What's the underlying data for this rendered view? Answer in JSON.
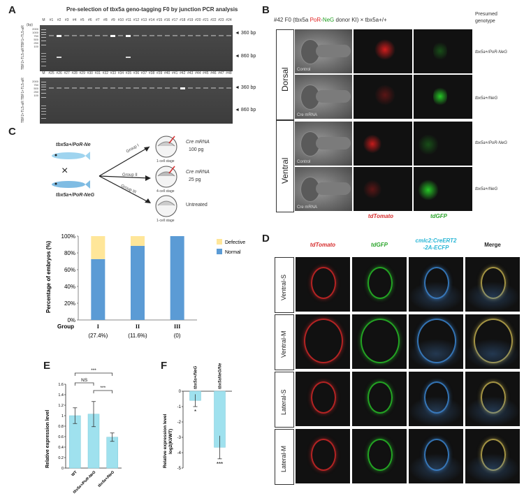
{
  "panel_labels": {
    "a": "A",
    "b": "B",
    "c": "C",
    "d": "D",
    "e": "E",
    "f": "F"
  },
  "panel_a": {
    "title": "Pre-selection of tbx5a geno-tagging F0 by junction PCR analysis",
    "row1_lanes": [
      "M",
      "#1",
      "#2",
      "#3",
      "#4",
      "#5",
      "#6",
      "#7",
      "#8",
      "#9",
      "#10",
      "#11",
      "#12",
      "#13",
      "#14",
      "#15",
      "#16",
      "#17",
      "#18",
      "#19",
      "#20",
      "#21",
      "#22",
      "#23",
      "#24"
    ],
    "row2_lanes": [
      "M",
      "#25",
      "#26",
      "#27",
      "#28",
      "#29",
      "#30",
      "#31",
      "#32",
      "#33",
      "#34",
      "#35",
      "#36",
      "#37",
      "#38",
      "#39",
      "#40",
      "#41",
      "#42",
      "#43",
      "#44",
      "#45",
      "#46",
      "#47",
      "#48"
    ],
    "bp_unit": "(bp)",
    "ladder_marks_top": [
      "2000",
      "1000",
      "750",
      "500",
      "250",
      "100"
    ],
    "ladder_marks_bottom": [
      "2000",
      "750",
      "500",
      "250",
      "100"
    ],
    "band_360": "360 bp",
    "band_860": "860 bp",
    "side_label_1": "TBF1+TL5-aR",
    "side_label_2": "TBF2+TL5-aR"
  },
  "panel_b": {
    "title_prefix": "#42 F0 (tbx5a ",
    "title_por": "PoR",
    "title_dash": "-",
    "title_neg": "NeG",
    "title_suffix": " donor KI) × tbx5a+/+",
    "presumed": "Presumed\ngenotype",
    "dorsal": "Dorsal",
    "ventral": "Ventral",
    "rows": [
      {
        "label": "Control",
        "genotype": "tbx5a+/PoR-NeG"
      },
      {
        "label": "Cre mRNA",
        "genotype": "tbx5a+/NeG"
      },
      {
        "label": "Control",
        "genotype": "tbx5a+/PoR-NeG"
      },
      {
        "label": "Cre mRNA",
        "genotype": "tbx5a+/NeG"
      }
    ],
    "col_tdtomato": "tdTomato",
    "col_tdgfp": "tdGFP"
  },
  "panel_c": {
    "parent_top": "tbx5a+/PoR-Ne",
    "parent_bottom": "tbx5a+/PoR-NeG",
    "cross": "×",
    "groups_arrow": [
      "Group I",
      "Group II",
      "Group III"
    ],
    "treatments": [
      {
        "dose_label": "Cre mRNA",
        "dose": "100 pg",
        "stage": "1-cell stage"
      },
      {
        "dose_label": "Cre mRNA",
        "dose": "25 pg",
        "stage": "4-cell stage"
      },
      {
        "dose_label": "Untreated",
        "dose": "",
        "stage": "1-cell stage"
      }
    ]
  },
  "chart_data": [
    {
      "type": "bar",
      "id": "panel_c_stacked",
      "ylabel": "Percentage of embryos (%)",
      "xlabel": "Group",
      "categories": [
        "I",
        "II",
        "III"
      ],
      "category_notes": [
        "(27.4%)",
        "(11.6%)",
        "(0)"
      ],
      "ylim": [
        0,
        100
      ],
      "yticks": [
        "0%",
        "20%",
        "40%",
        "60%",
        "80%",
        "100%"
      ],
      "legend_position": "right",
      "series": [
        {
          "name": "Normal",
          "values": [
            72.6,
            88.4,
            100
          ],
          "color": "#5b9bd5"
        },
        {
          "name": "Defective",
          "values": [
            27.4,
            11.6,
            0
          ],
          "color": "#ffe699"
        }
      ]
    },
    {
      "type": "bar",
      "id": "panel_e",
      "ylabel": "Relative expression level",
      "categories": [
        "WT",
        "tbx5a+/PoR-NeG",
        "tbx5a+/NeG"
      ],
      "values": [
        1.0,
        1.03,
        0.59
      ],
      "errors": [
        0.15,
        0.24,
        0.08
      ],
      "ylim": [
        0,
        1.6
      ],
      "yticks": [
        "0",
        "0.2",
        "0.4",
        "0.6",
        "0.8",
        "1",
        "1.2",
        "1.4",
        "1.6"
      ],
      "color": "#9fe1ee",
      "significance": [
        {
          "pair": "WT vs +/PoR-NeG",
          "text": "NS"
        },
        {
          "pair": "WT vs +/NeG",
          "text": "***"
        },
        {
          "pair": "+/PoR-NeG vs +/NeG",
          "text": "***"
        }
      ]
    },
    {
      "type": "bar",
      "id": "panel_f",
      "ylabel": "Relative expression level\nlog2(KI/WT)",
      "categories": [
        "tbx5a+/NeG",
        "tbx5aNeG/NeG"
      ],
      "values": [
        -0.6,
        -3.65
      ],
      "errors": [
        0.4,
        0.75
      ],
      "ylim": [
        -5,
        0
      ],
      "yticks": [
        "0",
        "-1",
        "-2",
        "-3",
        "-4",
        "-5"
      ],
      "color": "#9fe1ee",
      "significance": [
        "*",
        "***"
      ]
    }
  ],
  "panel_d": {
    "col_headers": [
      "tdTomato",
      "tdGFP",
      "cmlc2:CreERT2\n-2A-ECFP",
      "Merge"
    ],
    "col_colors": [
      "#d62b2b",
      "#2aa52a",
      "#29b6d6",
      "#222222"
    ],
    "row_labels": [
      "Ventral-S",
      "Ventral-M",
      "Lateral-S",
      "Lateral-M"
    ]
  }
}
